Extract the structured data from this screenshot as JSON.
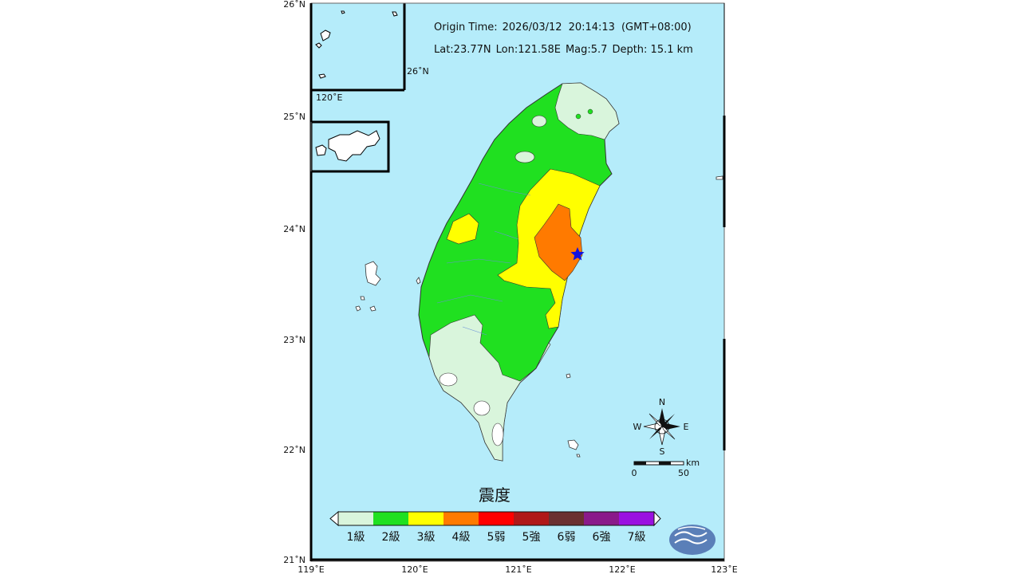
{
  "header": {
    "origin_label": "Origin Time:",
    "origin_date": "2026/03/12",
    "origin_time": "20:14:13",
    "timezone": "(GMT+08:00)",
    "lat": "Lat:23.77N",
    "lon": "Lon:121.58E",
    "mag": "Mag:5.7",
    "depth": "Depth: 15.1 km"
  },
  "axes": {
    "lat_labels": [
      "26˚N",
      "25˚N",
      "24˚N",
      "23˚N",
      "22˚N",
      "21˚N"
    ],
    "lon_labels": [
      "119˚E",
      "120˚E",
      "121˚E",
      "122˚E",
      "123˚E"
    ],
    "inset_lat": "26˚N",
    "inset_lon": "120˚E"
  },
  "compass": {
    "n": "N",
    "s": "S",
    "e": "E",
    "w": "W"
  },
  "scale": {
    "unit": "km",
    "start": "0",
    "end": "50"
  },
  "legend": {
    "title": "震度",
    "items": [
      {
        "label": "1級",
        "color": "#d9f5dc"
      },
      {
        "label": "2級",
        "color": "#20e020"
      },
      {
        "label": "3級",
        "color": "#ffff00"
      },
      {
        "label": "4級",
        "color": "#ff7a00"
      },
      {
        "label": "5弱",
        "color": "#ff0000"
      },
      {
        "label": "5強",
        "color": "#b01818"
      },
      {
        "label": "6弱",
        "color": "#6b3030"
      },
      {
        "label": "6強",
        "color": "#8a1a8a"
      },
      {
        "label": "7級",
        "color": "#9a10e0"
      }
    ]
  },
  "colors": {
    "sea": "#b5ecfa",
    "epicenter": "#1010e0",
    "logo": "#5a7fb8"
  },
  "epicenter_icon": "star-icon",
  "logo_icon": "cwa-logo-icon"
}
